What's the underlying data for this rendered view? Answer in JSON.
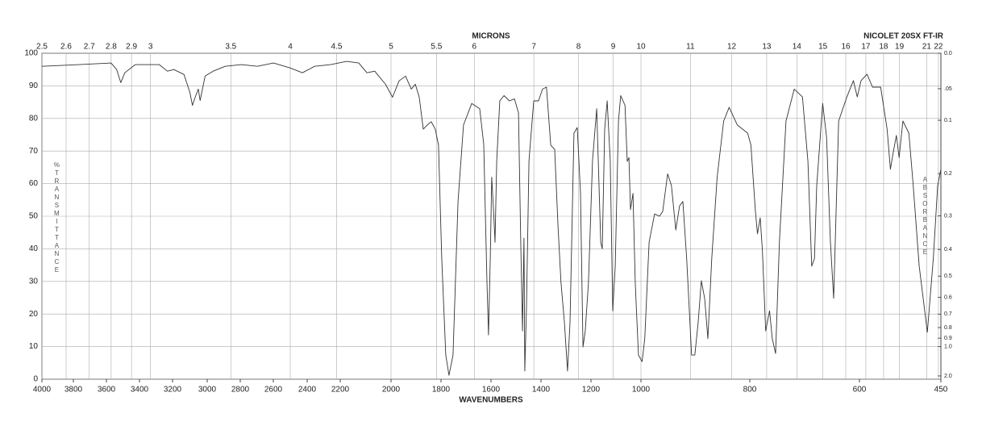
{
  "chart_data": {
    "type": "line",
    "title": "NICOLET 20SX FT-IR",
    "x_label": "WAVENUMBERS",
    "x2_label": "MICRONS",
    "y_label": "%TRANSMITTANCE",
    "y2_label": "ABSORBANCE",
    "color": "#333333",
    "grid": true,
    "xlim": [
      4000,
      450
    ],
    "xticks": [
      4000,
      3800,
      3600,
      3400,
      3200,
      3000,
      2800,
      2600,
      2400,
      2200,
      2000,
      1800,
      1600,
      1400,
      1200,
      1000,
      800,
      600,
      450
    ],
    "x2ticks": [
      2.5,
      2.6,
      2.7,
      2.8,
      2.9,
      3,
      3.5,
      4,
      4.5,
      5,
      5.5,
      6,
      7,
      8,
      9,
      10,
      11,
      12,
      13,
      14,
      15,
      16,
      17,
      18,
      19,
      21,
      22
    ],
    "ylim": [
      0,
      100
    ],
    "yticks": [
      0,
      10,
      20,
      30,
      40,
      50,
      60,
      70,
      80,
      90,
      100
    ],
    "y2lim": [
      0,
      2
    ],
    "y2_scale": "absorbance",
    "y2ticks": [
      {
        "value": 0,
        "label": "0.0"
      },
      {
        "value": 0.05,
        "label": ".05"
      },
      0.1,
      0.2,
      0.3,
      0.4,
      0.5,
      0.6,
      0.7,
      0.8,
      0.9,
      {
        "value": 1,
        "label": "1.0"
      },
      {
        "value": 2,
        "label": "2.0"
      }
    ],
    "x": [
      4000,
      3766,
      3572,
      3538,
      3513,
      3489,
      3426,
      3280,
      3231,
      3192,
      3134,
      3100,
      3085,
      3066,
      3051,
      3041,
      3012,
      2964,
      2891,
      2793,
      2696,
      2599,
      2501,
      2428,
      2355,
      2258,
      2175,
      2127,
      2095,
      2064,
      2022,
      1994,
      1968,
      1942,
      1919,
      1903,
      1887,
      1871,
      1855,
      1839,
      1823,
      1810,
      1797,
      1781,
      1768,
      1752,
      1732,
      1710,
      1677,
      1645,
      1629,
      1616,
      1610,
      1603,
      1597,
      1590,
      1584,
      1577,
      1565,
      1548,
      1526,
      1506,
      1490,
      1481,
      1474,
      1468,
      1465,
      1458,
      1448,
      1429,
      1410,
      1394,
      1378,
      1361,
      1345,
      1332,
      1320,
      1306,
      1294,
      1284,
      1268,
      1255,
      1242,
      1232,
      1223,
      1210,
      1194,
      1177,
      1161,
      1155,
      1145,
      1135,
      1123,
      1113,
      1103,
      1090,
      1081,
      1064,
      1055,
      1048,
      1042,
      1032,
      1023,
      1010,
      998,
      993,
      985,
      975,
      966,
      960,
      951,
      944,
      936,
      929,
      923,
      916,
      907,
      901,
      895,
      889,
      883,
      877,
      870,
      860,
      848,
      838,
      823,
      804,
      798,
      790,
      786,
      781,
      777,
      771,
      764,
      759,
      753,
      746,
      734,
      719,
      704,
      694,
      687,
      682,
      678,
      667,
      660,
      653,
      647,
      638,
      623,
      611,
      604,
      597,
      586,
      576,
      561,
      549,
      543,
      538,
      532,
      527,
      520,
      509,
      501,
      490,
      475,
      464,
      456,
      450
    ],
    "values": [
      96,
      96.5,
      97,
      95,
      91,
      94,
      96.5,
      96.5,
      94.5,
      95,
      93.5,
      88,
      84,
      87,
      89,
      85.5,
      93,
      94.5,
      96,
      96.5,
      96,
      97,
      95.5,
      94,
      96,
      96.5,
      97.5,
      97,
      94,
      94.5,
      90.5,
      86.5,
      91.5,
      93,
      89,
      90.5,
      86.5,
      76.7,
      78,
      79,
      76.7,
      71.8,
      37,
      7.4,
      1.2,
      7.4,
      54.5,
      78,
      84.6,
      83,
      72,
      29.7,
      13.6,
      37,
      62,
      52,
      42,
      67,
      85.4,
      87,
      85.4,
      86,
      81.7,
      42,
      14.8,
      43.3,
      2.5,
      22,
      67,
      85.4,
      85.4,
      89,
      89.6,
      71.8,
      70.5,
      47,
      29.7,
      17.3,
      2.5,
      17.3,
      75.5,
      77.2,
      57,
      9.9,
      14.8,
      29.7,
      67,
      83,
      42,
      40,
      76.7,
      85.4,
      67,
      21,
      34.7,
      79.2,
      87,
      84,
      66.8,
      68,
      52,
      57,
      29.7,
      7.4,
      5.4,
      12.4,
      42,
      50.7,
      50,
      51.5,
      63,
      59.4,
      45.8,
      53.2,
      54.5,
      37,
      7.4,
      7.4,
      17.3,
      30.2,
      24.8,
      12.4,
      37,
      62,
      79.2,
      83.4,
      78,
      75.5,
      71.8,
      52,
      44.6,
      49.5,
      39.6,
      14.8,
      21,
      12.4,
      7.9,
      42,
      79.2,
      89,
      86.6,
      66.8,
      34.7,
      37,
      59.4,
      84.6,
      74.3,
      42,
      24.8,
      79.2,
      86.6,
      91.6,
      86.6,
      91.6,
      93.6,
      89.6,
      89.6,
      76.7,
      64.4,
      69.3,
      74.8,
      68,
      79.2,
      75.5,
      59.4,
      34.7,
      14.4,
      37,
      59.4,
      64.4
    ]
  }
}
